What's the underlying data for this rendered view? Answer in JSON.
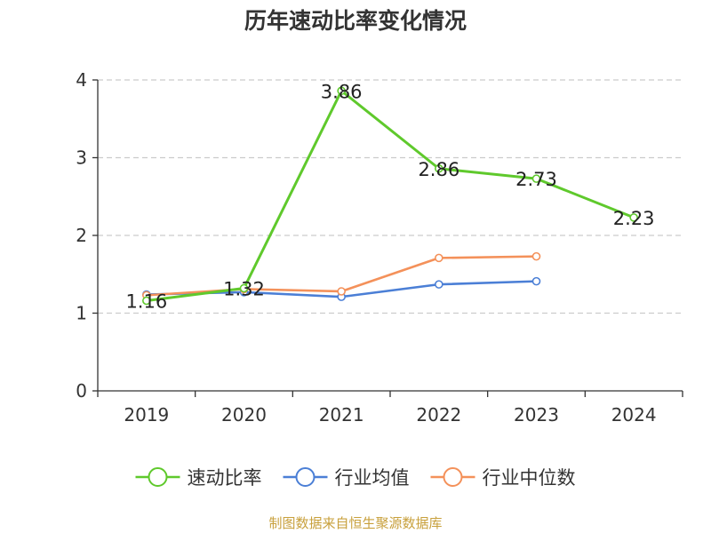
{
  "chart_data": {
    "type": "line",
    "title": "历年速动比率变化情况",
    "categories": [
      "2019",
      "2020",
      "2021",
      "2022",
      "2023",
      "2024"
    ],
    "ylim": [
      0,
      4
    ],
    "yticks": [
      0,
      1,
      2,
      3,
      4
    ],
    "grid": true,
    "legend_position": "bottom",
    "series": [
      {
        "name": "速动比率",
        "color": "#5fc92c",
        "values": [
          1.16,
          1.32,
          3.86,
          2.86,
          2.73,
          2.23
        ],
        "labels": [
          "1.16",
          "1.32",
          "3.86",
          "2.86",
          "2.73",
          "2.23"
        ]
      },
      {
        "name": "行业均值",
        "color": "#4b7fd6",
        "values": [
          1.24,
          1.27,
          1.21,
          1.37,
          1.41,
          null
        ]
      },
      {
        "name": "行业中位数",
        "color": "#f4915a",
        "values": [
          1.23,
          1.31,
          1.28,
          1.71,
          1.73,
          null
        ]
      }
    ]
  },
  "source_note": "制图数据来自恒生聚源数据库"
}
